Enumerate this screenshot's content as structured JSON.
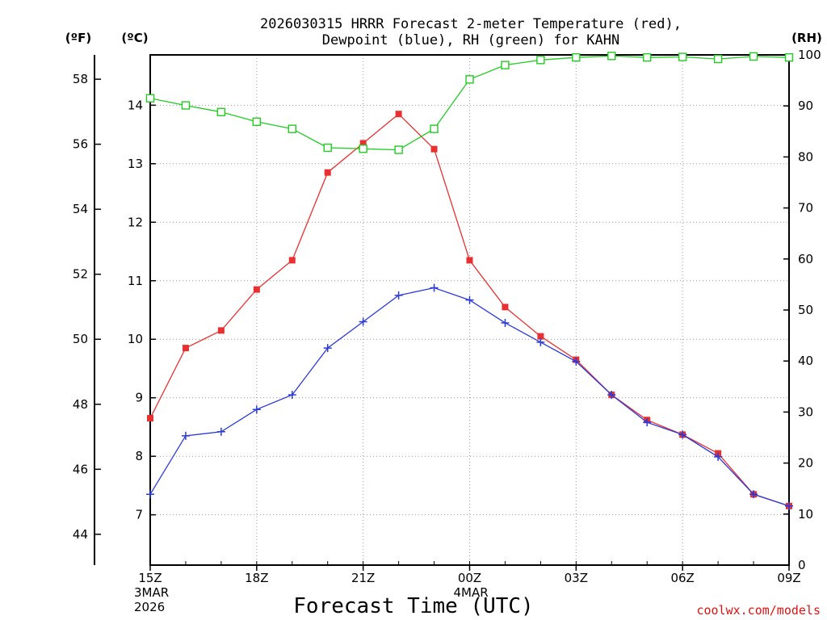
{
  "chart_data": {
    "type": "line",
    "title_line1": "2026030315 HRRR Forecast 2-meter Temperature (red),",
    "title_line2": "Dewpoint (blue), RH (green) for KAHN",
    "xlabel": "Forecast Time (UTC)",
    "credit": "coolwx.com/models",
    "units": {
      "fahrenheit": "(ºF)",
      "celsius": "(ºC)",
      "rh": "(RH)"
    },
    "x": [
      15,
      16,
      17,
      18,
      19,
      20,
      21,
      22,
      23,
      24,
      25,
      26,
      27,
      28,
      29,
      30,
      31,
      32,
      33
    ],
    "xlim": [
      15,
      33
    ],
    "x_ticks": [
      {
        "x": 15,
        "label": "15Z",
        "sub1": "3MAR",
        "sub2": "2026"
      },
      {
        "x": 18,
        "label": "18Z",
        "sub1": "",
        "sub2": ""
      },
      {
        "x": 21,
        "label": "21Z",
        "sub1": "",
        "sub2": ""
      },
      {
        "x": 24,
        "label": "00Z",
        "sub1": "4MAR",
        "sub2": ""
      },
      {
        "x": 27,
        "label": "03Z",
        "sub1": "",
        "sub2": ""
      },
      {
        "x": 30,
        "label": "06Z",
        "sub1": "",
        "sub2": ""
      },
      {
        "x": 33,
        "label": "09Z",
        "sub1": "",
        "sub2": ""
      }
    ],
    "celsius_ticks": [
      "7",
      "8",
      "9",
      "10",
      "11",
      "12",
      "13",
      "14"
    ],
    "fahrenheit_ticks": [
      "44",
      "46",
      "48",
      "50",
      "52",
      "54",
      "56",
      "58"
    ],
    "rh_ticks": [
      "0",
      "10",
      "20",
      "30",
      "40",
      "50",
      "60",
      "70",
      "80",
      "90",
      "100"
    ],
    "ylim_c": [
      6.14,
      14.86
    ],
    "ylim_rh": [
      0,
      100
    ],
    "series": [
      {
        "name": "Temperature",
        "color": "#e83030",
        "marker": "filled-square",
        "axis": "celsius",
        "values": [
          8.65,
          9.85,
          10.15,
          10.85,
          11.35,
          12.85,
          13.35,
          13.85,
          13.25,
          11.35,
          10.55,
          10.05,
          9.65,
          9.05,
          8.62,
          8.37,
          8.05,
          7.35,
          7.15
        ]
      },
      {
        "name": "Dewpoint",
        "color": "#2a3ad8",
        "marker": "plus",
        "axis": "celsius",
        "values": [
          7.35,
          8.35,
          8.42,
          8.8,
          9.05,
          9.85,
          10.3,
          10.75,
          10.88,
          10.67,
          10.28,
          9.95,
          9.62,
          9.05,
          8.58,
          8.37,
          7.99,
          7.35,
          7.15
        ]
      },
      {
        "name": "RH",
        "color": "#22cc22",
        "marker": "open-square",
        "axis": "rh",
        "values": [
          91.5,
          90.1,
          88.8,
          86.9,
          85.5,
          81.8,
          81.6,
          81.4,
          85.5,
          95.2,
          98.0,
          99.0,
          99.5,
          99.8,
          99.5,
          99.6,
          99.2,
          99.7,
          99.5
        ]
      }
    ]
  }
}
